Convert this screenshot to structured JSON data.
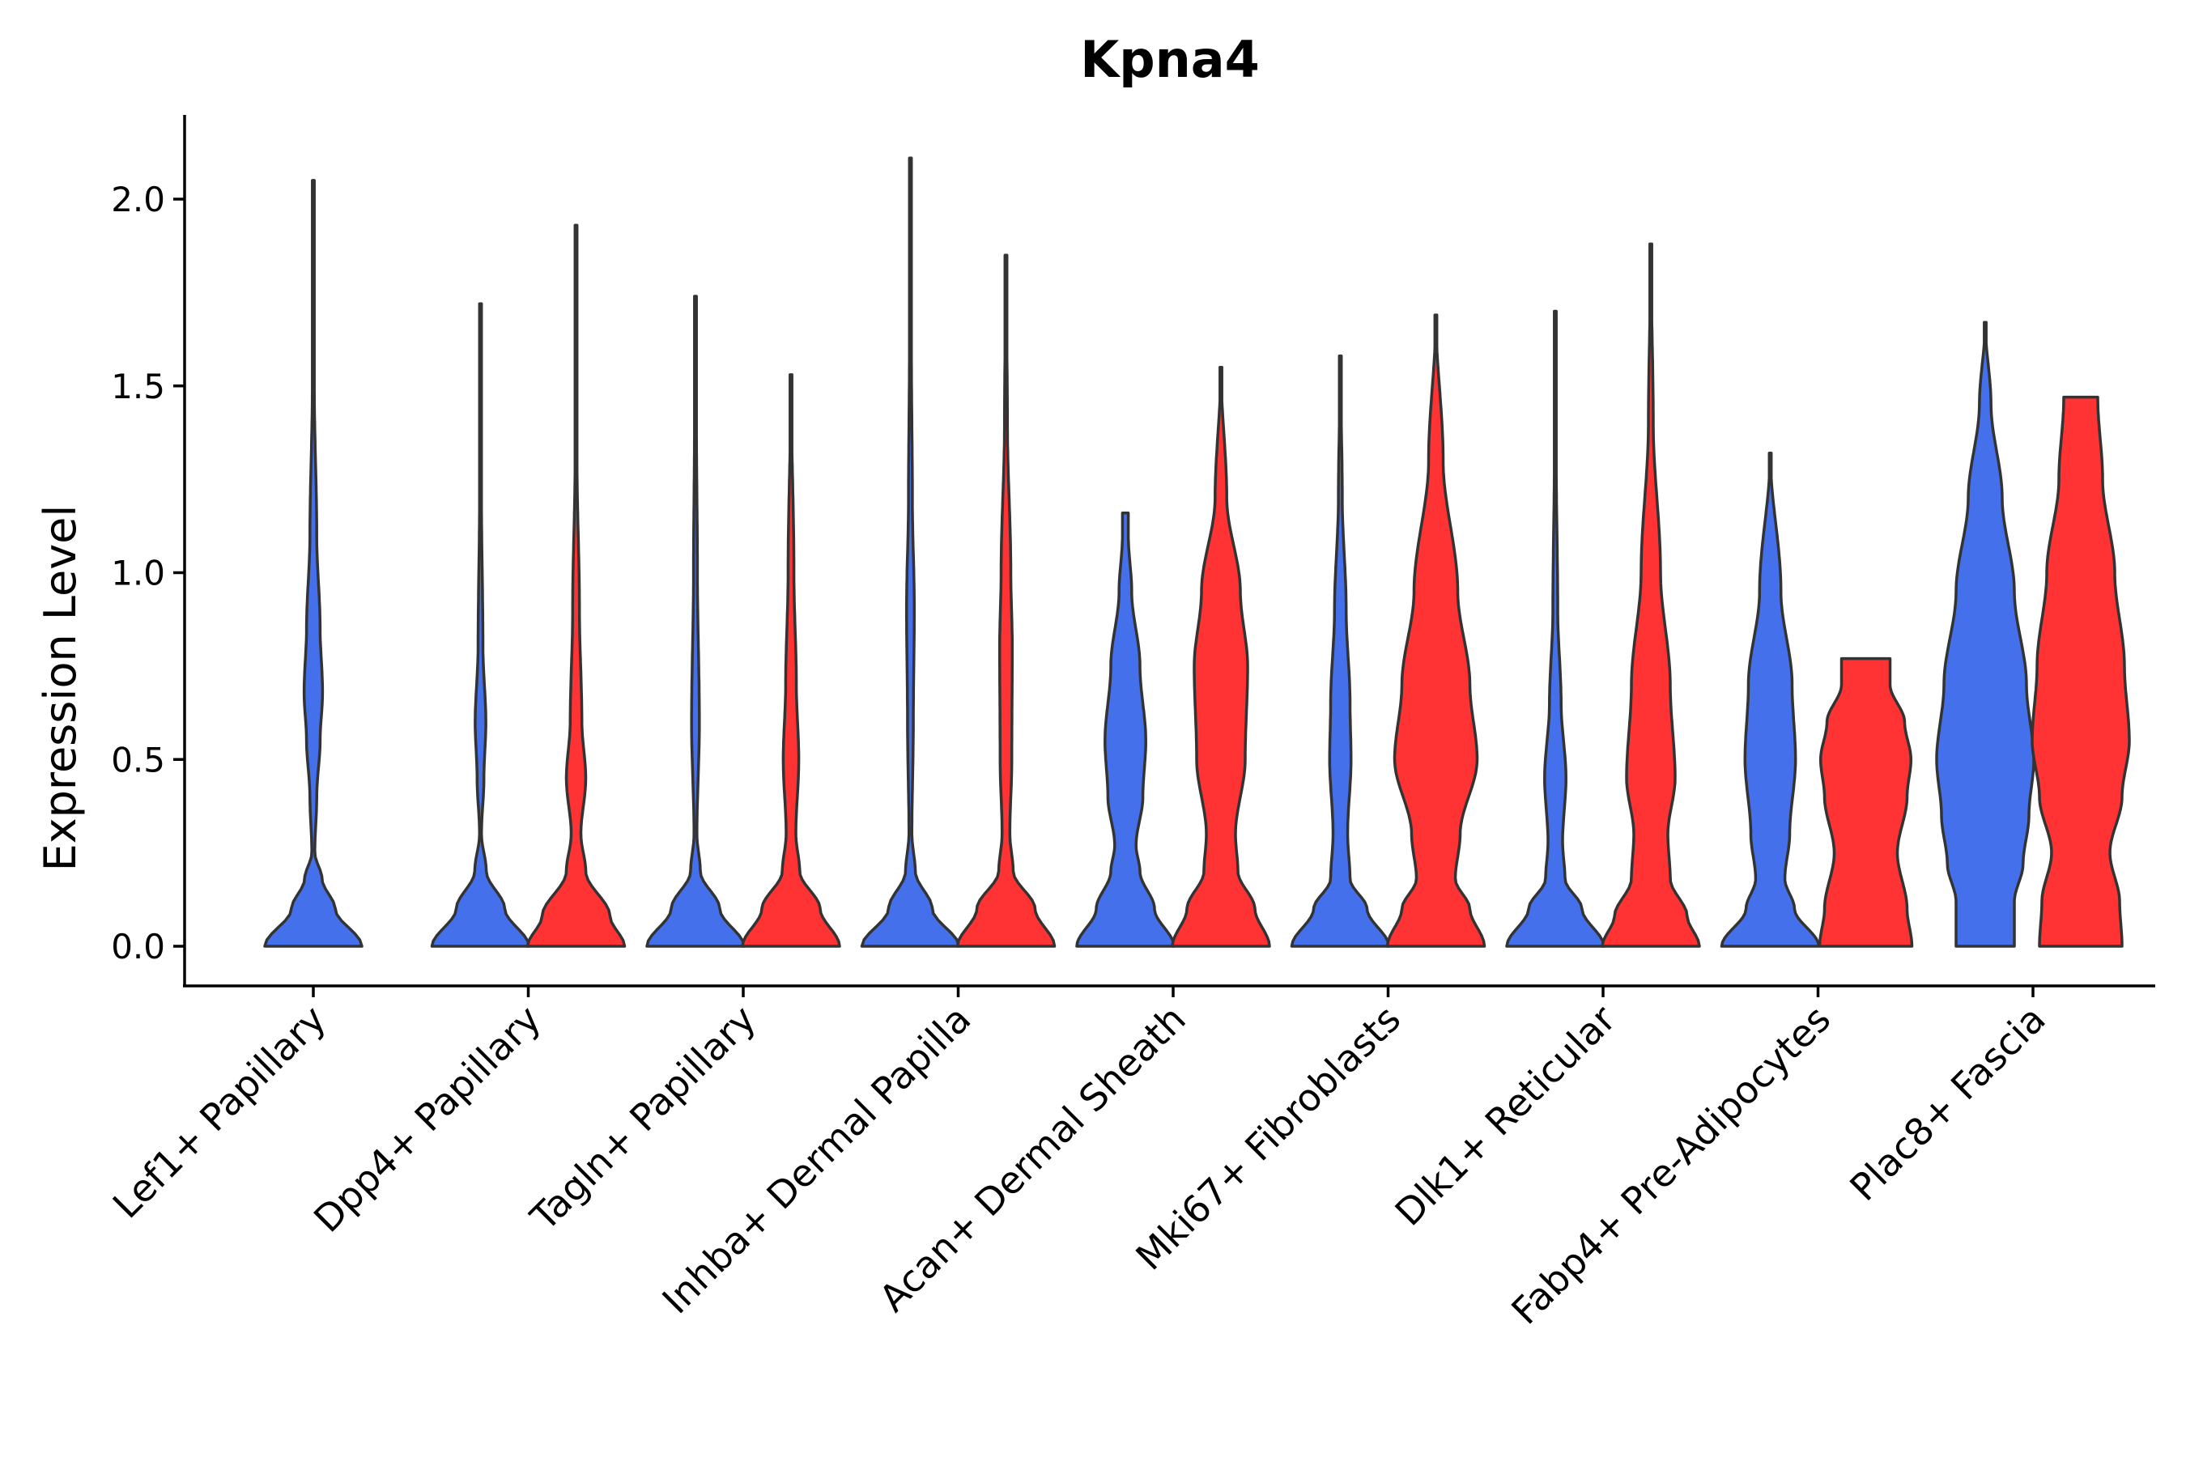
{
  "chart_data": {
    "type": "violin",
    "title": "Kpna4",
    "xlabel": "",
    "ylabel": "Expression Level",
    "ylim": [
      -0.1,
      2.2
    ],
    "yticks": [
      "0.0",
      "0.5",
      "1.0",
      "1.5",
      "2.0"
    ],
    "ytick_values": [
      0,
      0.5,
      1.0,
      1.5,
      2.0
    ],
    "grid": false,
    "legend": "none",
    "colors": {
      "blue": "#4570EB",
      "red": "#FF3333"
    },
    "series": [
      {
        "name": "group-blue",
        "color": "#4570EB"
      },
      {
        "name": "group-red",
        "color": "#FF3333"
      }
    ],
    "categories": [
      "Lef1+ Papillary",
      "Dpp4+ Papillary",
      "Tagln+ Papillary",
      "Inhba+ Dermal Papilla",
      "Acan+ Dermal Sheath",
      "Mki67+ Fibroblasts",
      "Dlk1+ Reticular",
      "Fabp4+ Pre-Adipocytes",
      "Plac8+ Fascia"
    ],
    "violins": [
      {
        "category": "Lef1+ Papillary",
        "group": "blue",
        "max": 2.05,
        "lobe": 0.68,
        "dist": [
          [
            0.0,
            1.0
          ],
          [
            0.1,
            0.45
          ],
          [
            0.18,
            0.18
          ],
          [
            0.25,
            0.03
          ],
          [
            0.4,
            0.07
          ],
          [
            0.55,
            0.14
          ],
          [
            0.68,
            0.19
          ],
          [
            0.85,
            0.14
          ],
          [
            1.1,
            0.07
          ],
          [
            1.5,
            0.02
          ],
          [
            2.05,
            0.0
          ]
        ]
      },
      {
        "category": "Dpp4+ Papillary",
        "group": "blue",
        "max": 1.72,
        "lobe": 0.6,
        "dist": [
          [
            0.0,
            1.0
          ],
          [
            0.1,
            0.5
          ],
          [
            0.2,
            0.12
          ],
          [
            0.3,
            0.02
          ],
          [
            0.45,
            0.07
          ],
          [
            0.6,
            0.11
          ],
          [
            0.8,
            0.05
          ],
          [
            1.2,
            0.02
          ],
          [
            1.72,
            0.0
          ]
        ]
      },
      {
        "category": "Dpp4+ Papillary",
        "group": "red",
        "max": 1.93,
        "lobe": 0.45,
        "dist": [
          [
            0.0,
            1.0
          ],
          [
            0.08,
            0.7
          ],
          [
            0.2,
            0.2
          ],
          [
            0.3,
            0.1
          ],
          [
            0.45,
            0.2
          ],
          [
            0.6,
            0.12
          ],
          [
            0.9,
            0.07
          ],
          [
            1.3,
            0.02
          ],
          [
            1.93,
            0.0
          ]
        ]
      },
      {
        "category": "Tagln+ Papillary",
        "group": "blue",
        "max": 1.74,
        "lobe": 0.6,
        "dist": [
          [
            0.0,
            1.0
          ],
          [
            0.1,
            0.5
          ],
          [
            0.2,
            0.1
          ],
          [
            0.3,
            0.03
          ],
          [
            0.6,
            0.08
          ],
          [
            1.0,
            0.04
          ],
          [
            1.4,
            0.02
          ],
          [
            1.74,
            0.0
          ]
        ]
      },
      {
        "category": "Tagln+ Papillary",
        "group": "red",
        "max": 1.53,
        "lobe": 0.5,
        "dist": [
          [
            0.0,
            1.0
          ],
          [
            0.1,
            0.6
          ],
          [
            0.2,
            0.18
          ],
          [
            0.3,
            0.1
          ],
          [
            0.5,
            0.16
          ],
          [
            0.7,
            0.11
          ],
          [
            1.0,
            0.06
          ],
          [
            1.53,
            0.0
          ]
        ]
      },
      {
        "category": "Inhba+ Dermal Papilla",
        "group": "blue",
        "max": 2.11,
        "lobe": 0.88,
        "dist": [
          [
            0.0,
            1.0
          ],
          [
            0.1,
            0.45
          ],
          [
            0.2,
            0.1
          ],
          [
            0.3,
            0.03
          ],
          [
            0.6,
            0.06
          ],
          [
            0.9,
            0.08
          ],
          [
            1.2,
            0.04
          ],
          [
            1.6,
            0.02
          ],
          [
            2.11,
            0.0
          ]
        ]
      },
      {
        "category": "Inhba+ Dermal Papilla",
        "group": "red",
        "max": 1.85,
        "lobe": 0.75,
        "dist": [
          [
            0.0,
            1.0
          ],
          [
            0.1,
            0.6
          ],
          [
            0.2,
            0.15
          ],
          [
            0.3,
            0.08
          ],
          [
            0.5,
            0.12
          ],
          [
            0.8,
            0.13
          ],
          [
            1.0,
            0.1
          ],
          [
            1.4,
            0.03
          ],
          [
            1.85,
            0.0
          ]
        ]
      },
      {
        "category": "Acan+ Dermal Sheath",
        "group": "blue",
        "max": 1.16,
        "lobe": 0.55,
        "dist": [
          [
            0.0,
            1.0
          ],
          [
            0.1,
            0.6
          ],
          [
            0.2,
            0.3
          ],
          [
            0.27,
            0.22
          ],
          [
            0.4,
            0.36
          ],
          [
            0.55,
            0.42
          ],
          [
            0.75,
            0.3
          ],
          [
            0.95,
            0.13
          ],
          [
            1.1,
            0.06
          ],
          [
            1.16,
            0.06
          ]
        ]
      },
      {
        "category": "Acan+ Dermal Sheath",
        "group": "red",
        "max": 1.55,
        "lobe": 0.5,
        "dist": [
          [
            0.0,
            1.0
          ],
          [
            0.1,
            0.7
          ],
          [
            0.2,
            0.35
          ],
          [
            0.3,
            0.3
          ],
          [
            0.5,
            0.5
          ],
          [
            0.75,
            0.55
          ],
          [
            0.95,
            0.4
          ],
          [
            1.2,
            0.12
          ],
          [
            1.55,
            0.0
          ]
        ]
      },
      {
        "category": "Mki67+ Fibroblasts",
        "group": "blue",
        "max": 1.58,
        "lobe": 0.6,
        "dist": [
          [
            0.0,
            1.0
          ],
          [
            0.1,
            0.55
          ],
          [
            0.18,
            0.2
          ],
          [
            0.3,
            0.15
          ],
          [
            0.5,
            0.22
          ],
          [
            0.65,
            0.2
          ],
          [
            0.9,
            0.12
          ],
          [
            1.2,
            0.04
          ],
          [
            1.58,
            0.0
          ]
        ]
      },
      {
        "category": "Mki67+ Fibroblasts",
        "group": "red",
        "max": 1.69,
        "lobe": 0.5,
        "dist": [
          [
            0.0,
            1.0
          ],
          [
            0.1,
            0.7
          ],
          [
            0.18,
            0.4
          ],
          [
            0.3,
            0.5
          ],
          [
            0.5,
            0.85
          ],
          [
            0.7,
            0.7
          ],
          [
            0.95,
            0.45
          ],
          [
            1.3,
            0.15
          ],
          [
            1.69,
            0.0
          ]
        ]
      },
      {
        "category": "Dlk1+ Reticular",
        "group": "blue",
        "max": 1.7,
        "lobe": 0.48,
        "dist": [
          [
            0.0,
            1.0
          ],
          [
            0.1,
            0.55
          ],
          [
            0.18,
            0.2
          ],
          [
            0.28,
            0.15
          ],
          [
            0.45,
            0.22
          ],
          [
            0.65,
            0.12
          ],
          [
            0.9,
            0.05
          ],
          [
            1.3,
            0.02
          ],
          [
            1.7,
            0.0
          ]
        ]
      },
      {
        "category": "Dlk1+ Reticular",
        "group": "red",
        "max": 1.88,
        "lobe": 0.45,
        "dist": [
          [
            0.0,
            1.0
          ],
          [
            0.08,
            0.75
          ],
          [
            0.18,
            0.4
          ],
          [
            0.3,
            0.35
          ],
          [
            0.45,
            0.5
          ],
          [
            0.7,
            0.4
          ],
          [
            1.0,
            0.2
          ],
          [
            1.4,
            0.05
          ],
          [
            1.88,
            0.0
          ]
        ]
      },
      {
        "category": "Fabp4+ Pre-Adipocytes",
        "group": "blue",
        "max": 1.32,
        "lobe": 0.5,
        "dist": [
          [
            0.0,
            1.0
          ],
          [
            0.1,
            0.5
          ],
          [
            0.18,
            0.3
          ],
          [
            0.3,
            0.4
          ],
          [
            0.5,
            0.52
          ],
          [
            0.7,
            0.45
          ],
          [
            0.95,
            0.22
          ],
          [
            1.32,
            0.0
          ]
        ]
      },
      {
        "category": "Fabp4+ Pre-Adipocytes",
        "group": "red",
        "max": 0.77,
        "lobe": 0.5,
        "dist": [
          [
            0.0,
            0.95
          ],
          [
            0.1,
            0.85
          ],
          [
            0.25,
            0.65
          ],
          [
            0.4,
            0.85
          ],
          [
            0.5,
            0.93
          ],
          [
            0.6,
            0.8
          ],
          [
            0.7,
            0.5
          ],
          [
            0.77,
            0.5
          ]
        ]
      },
      {
        "category": "Plac8+ Fascia",
        "group": "blue",
        "max": 1.67,
        "lobe": 0.5,
        "dist": [
          [
            0.0,
            0.6
          ],
          [
            0.12,
            0.6
          ],
          [
            0.22,
            0.78
          ],
          [
            0.35,
            0.9
          ],
          [
            0.5,
            1.0
          ],
          [
            0.7,
            0.85
          ],
          [
            0.95,
            0.6
          ],
          [
            1.2,
            0.35
          ],
          [
            1.45,
            0.12
          ],
          [
            1.67,
            0.0
          ]
        ]
      },
      {
        "category": "Plac8+ Fascia",
        "group": "red",
        "max": 1.47,
        "lobe": 0.55,
        "dist": [
          [
            0.0,
            0.85
          ],
          [
            0.12,
            0.8
          ],
          [
            0.25,
            0.6
          ],
          [
            0.4,
            0.85
          ],
          [
            0.55,
            1.0
          ],
          [
            0.75,
            0.9
          ],
          [
            1.0,
            0.7
          ],
          [
            1.25,
            0.45
          ],
          [
            1.47,
            0.35
          ]
        ]
      }
    ]
  }
}
